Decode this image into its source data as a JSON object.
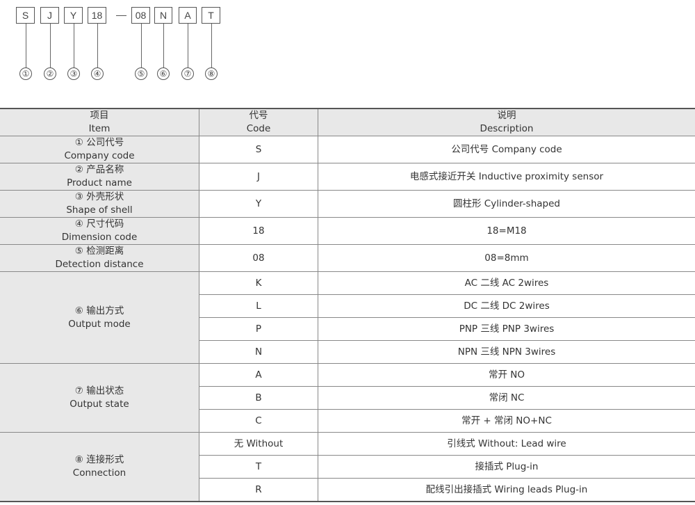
{
  "model_code": {
    "parts": [
      "S",
      "J",
      "Y",
      "18",
      "08",
      "N",
      "A",
      "T"
    ],
    "numbers": [
      "①",
      "②",
      "③",
      "④",
      "⑤",
      "⑥",
      "⑦",
      "⑧"
    ]
  },
  "table": {
    "headers": [
      {
        "cn": "项目",
        "en": "Item"
      },
      {
        "cn": "代号",
        "en": "Code"
      },
      {
        "cn": "说明",
        "en": "Description"
      }
    ],
    "groups": [
      {
        "cn": "① 公司代号",
        "en": "Company code",
        "rows": [
          {
            "code": "S",
            "desc": "公司代号 Company code"
          }
        ]
      },
      {
        "cn": "② 产品名称",
        "en": "Product name",
        "rows": [
          {
            "code": "J",
            "desc": "电感式接近开关 Inductive proximity sensor"
          }
        ]
      },
      {
        "cn": "③ 外壳形状",
        "en": "Shape of shell",
        "rows": [
          {
            "code": "Y",
            "desc": "圆柱形 Cylinder-shaped"
          }
        ]
      },
      {
        "cn": "④ 尺寸代码",
        "en": "Dimension code",
        "rows": [
          {
            "code": "18",
            "desc": "18=M18"
          }
        ]
      },
      {
        "cn": "⑤ 检测距离",
        "en": "Detection distance",
        "rows": [
          {
            "code": "08",
            "desc": "08=8mm"
          }
        ]
      },
      {
        "cn": "⑥ 输出方式",
        "en": "Output mode",
        "rows": [
          {
            "code": "K",
            "desc": "AC 二线 AC 2wires"
          },
          {
            "code": "L",
            "desc": "DC 二线 DC 2wires"
          },
          {
            "code": "P",
            "desc": "PNP 三线 PNP 3wires"
          },
          {
            "code": "N",
            "desc": "NPN 三线 NPN 3wires"
          }
        ]
      },
      {
        "cn": "⑦ 输出状态",
        "en": "Output state",
        "rows": [
          {
            "code": "A",
            "desc": "常开 NO"
          },
          {
            "code": "B",
            "desc": "常闭 NC"
          },
          {
            "code": "C",
            "desc": "常开 + 常闭 NO+NC"
          }
        ]
      },
      {
        "cn": "⑧ 连接形式",
        "en": "Connection",
        "rows": [
          {
            "code": "无 Without",
            "desc": "引线式 Without: Lead wire"
          },
          {
            "code": "T",
            "desc": "接插式 Plug-in"
          },
          {
            "code": "R",
            "desc": "配线引出接插式 Wiring leads Plug-in"
          }
        ]
      }
    ]
  }
}
